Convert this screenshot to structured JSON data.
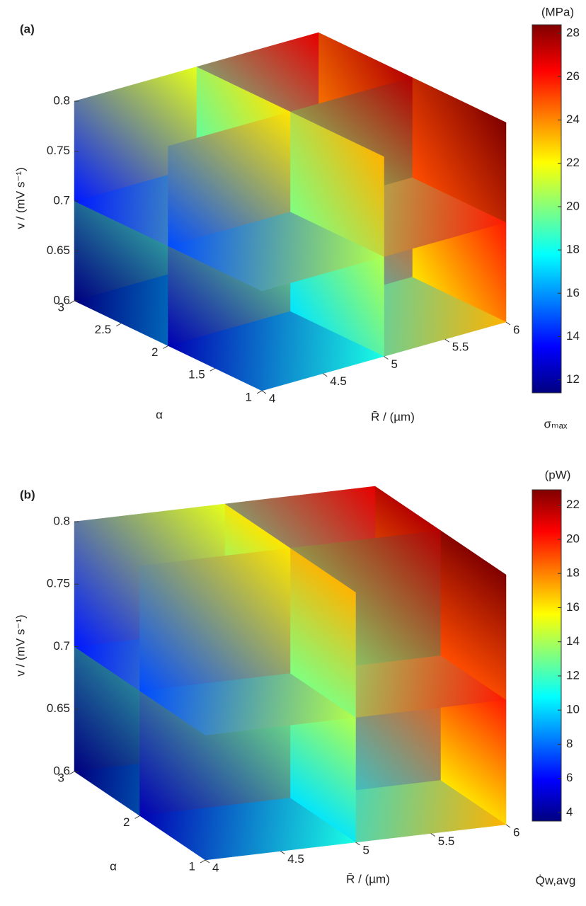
{
  "chart_data": [
    {
      "type": "slice3d",
      "panel_label": "(a)",
      "x_label": "R̄ / (µm)",
      "y_label": "α",
      "z_label": "v / (mV s⁻¹)",
      "xlim": [
        4,
        6
      ],
      "xticks": [
        4,
        4.5,
        5,
        5.5,
        6
      ],
      "ylim": [
        1,
        3
      ],
      "yticks": [
        1,
        1.5,
        2,
        2.5,
        3
      ],
      "zlim": [
        0.6,
        0.8
      ],
      "zticks": [
        0.6,
        0.65,
        0.7,
        0.75,
        0.8
      ],
      "slices": {
        "x": [
          5
        ],
        "y": [
          2
        ],
        "z": [
          0.7
        ]
      },
      "colormap": "jet",
      "clim": [
        11.4,
        28.4
      ],
      "cticks": [
        12,
        14,
        16,
        18,
        20,
        22,
        24,
        26,
        28
      ],
      "colorbar_unit": "(MPa)",
      "colorbar_label": "σₘₐₓ"
    },
    {
      "type": "slice3d",
      "panel_label": "(b)",
      "x_label": "R̄ / (µm)",
      "y_label": "α",
      "z_label": "v / (mV s⁻¹)",
      "xlim": [
        4,
        6
      ],
      "xticks": [
        4,
        4.5,
        5,
        5.5,
        6
      ],
      "ylim": [
        1,
        3
      ],
      "yticks": [
        1,
        2,
        3
      ],
      "zlim": [
        0.6,
        0.8
      ],
      "zticks": [
        0.6,
        0.65,
        0.7,
        0.75,
        0.8
      ],
      "slices": {
        "x": [
          5
        ],
        "y": [
          2
        ],
        "z": [
          0.7
        ]
      },
      "colormap": "jet",
      "clim": [
        3.5,
        22.9
      ],
      "cticks": [
        4,
        6,
        8,
        10,
        12,
        14,
        16,
        18,
        20,
        22
      ],
      "colorbar_unit": "(pW)",
      "colorbar_label": "Q̇w,avg"
    }
  ]
}
